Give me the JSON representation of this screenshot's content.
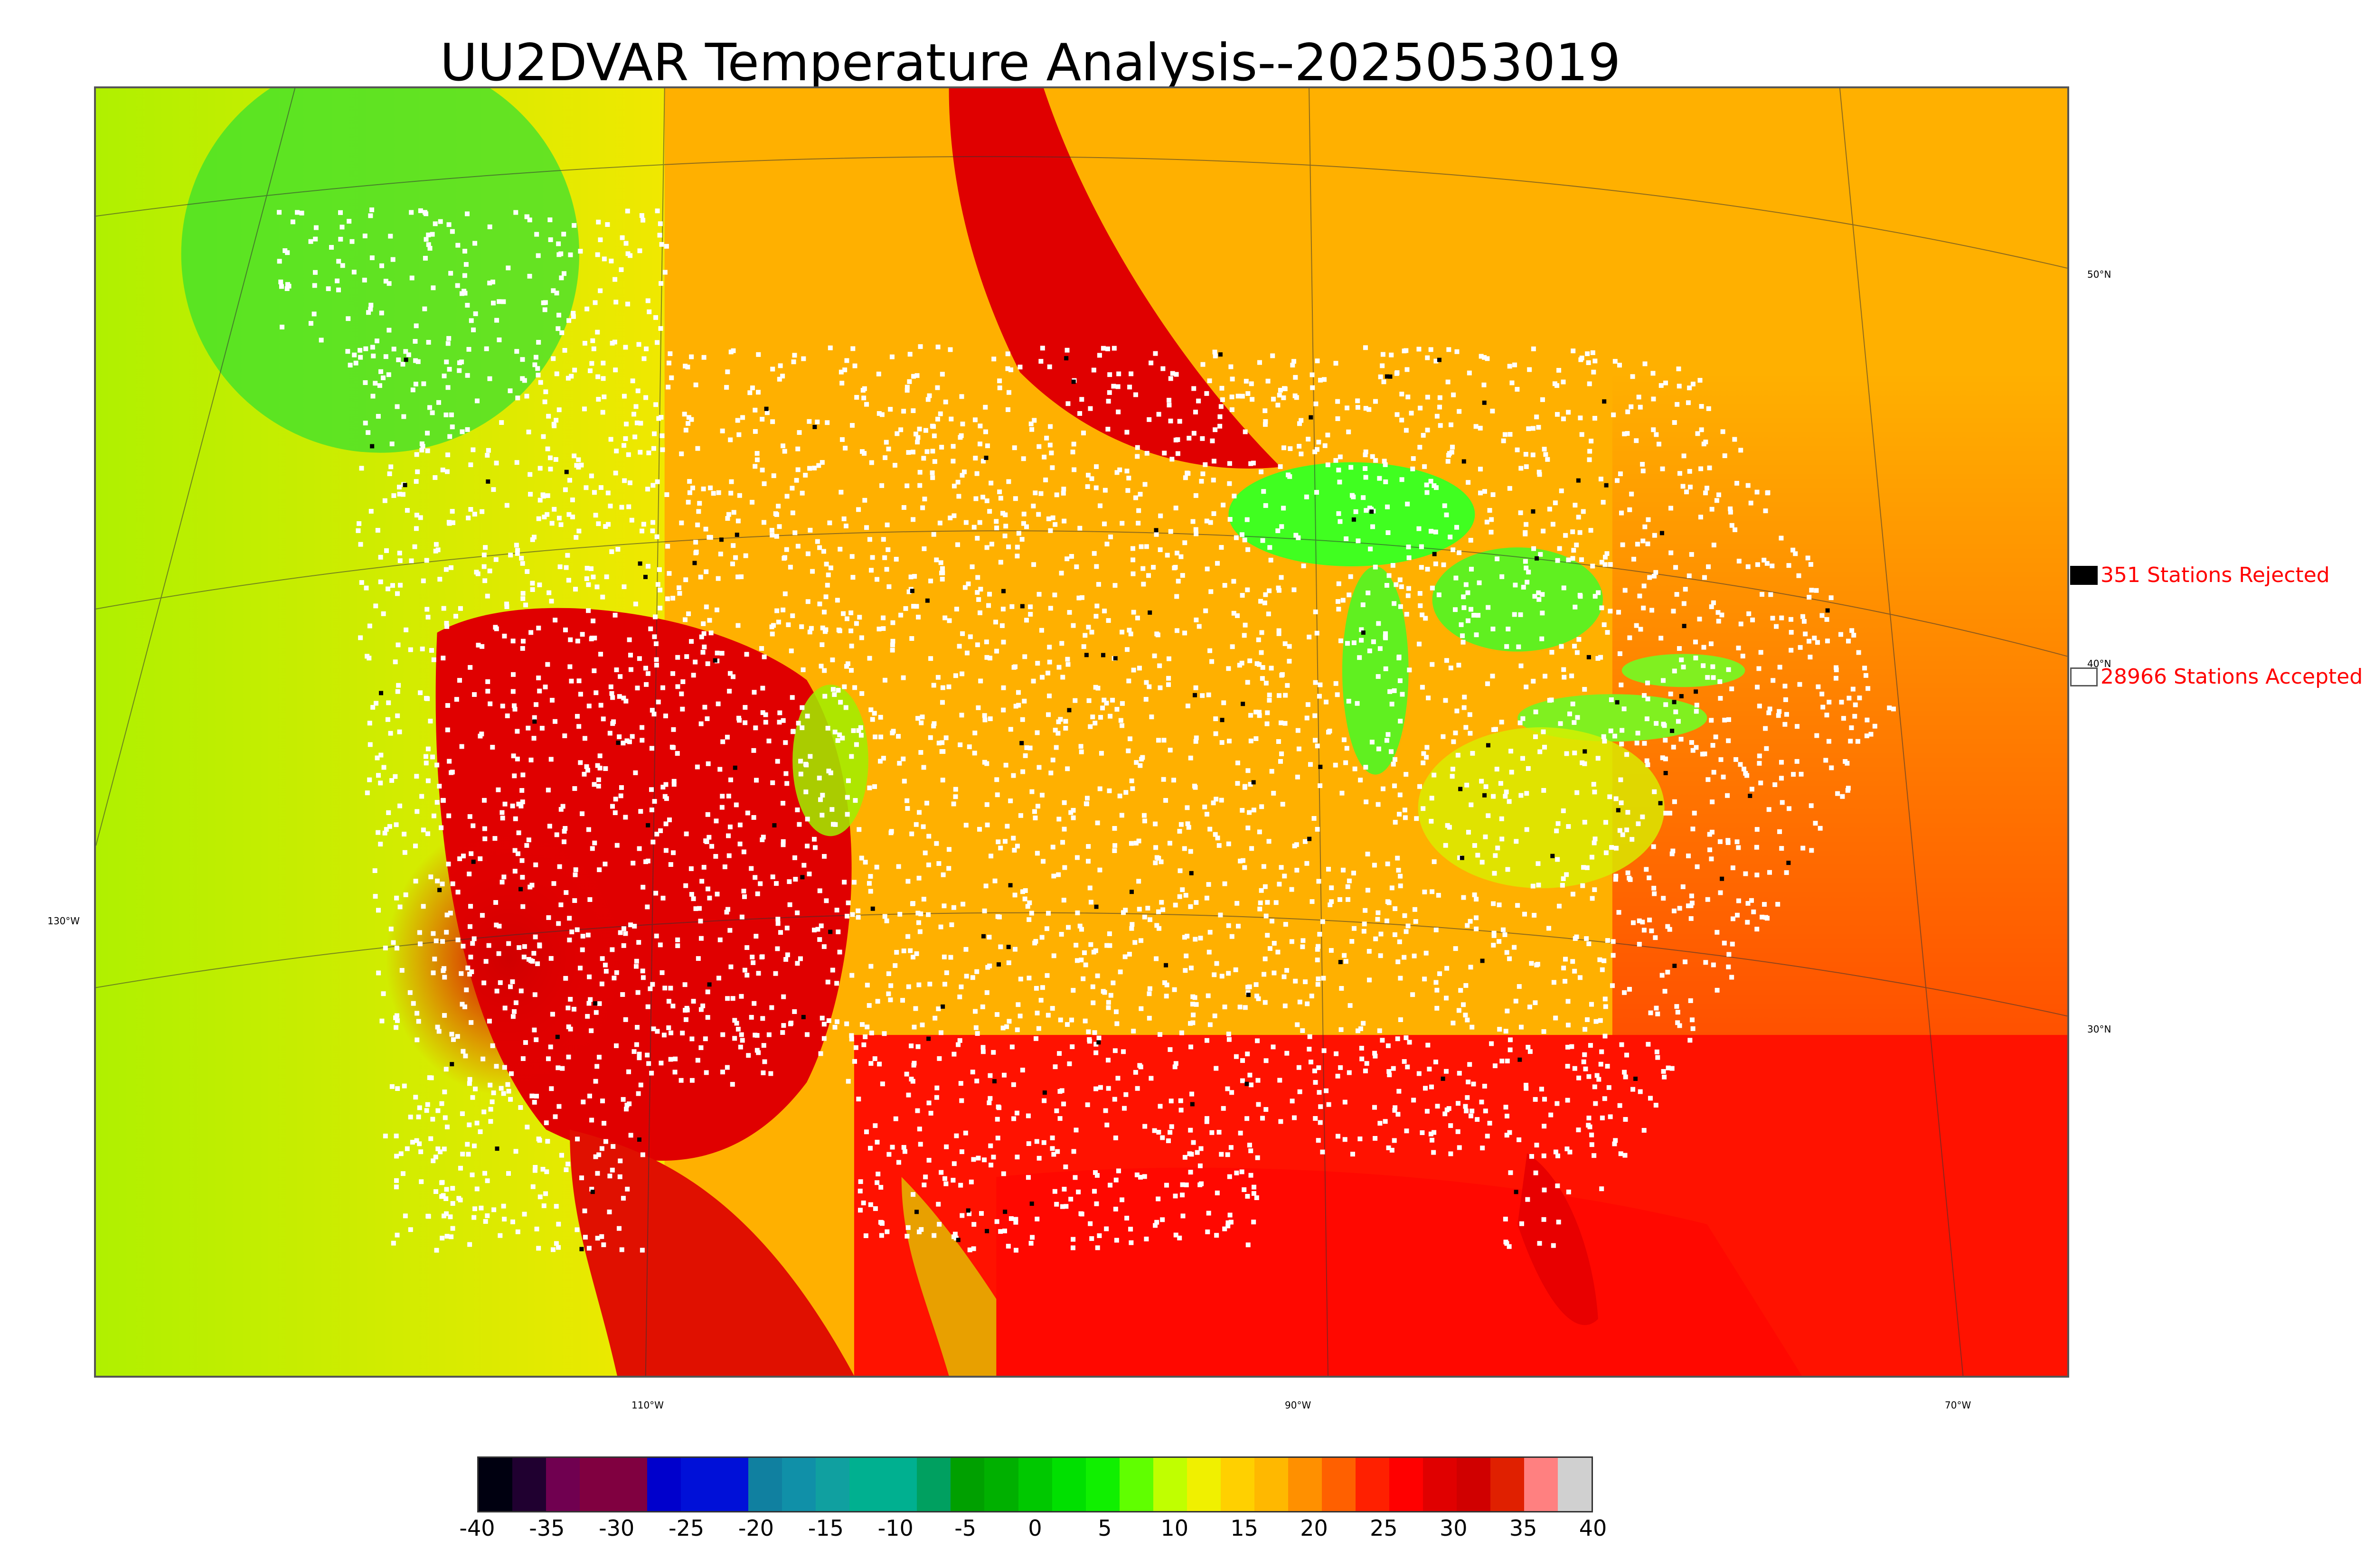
{
  "title": "UU2DVAR Temperature Analysis--2025053019",
  "map": {
    "region": "Contiguous United States and surrounding areas",
    "field": "temperature",
    "palette": {
      "ocean_west": "#e8e800",
      "ocean_east": "#ff3000",
      "gulf": "#ff1a00",
      "canada_north": "#00e000",
      "great_lakes": "#40ff20",
      "hot_interior": "#e00000",
      "plains": "#ff9a00",
      "station_accepted": "#ffffff",
      "station_rejected": "#000000"
    },
    "lat_labels": [
      "50°N",
      "40°N",
      "30°N"
    ],
    "lon_labels": [
      "130°W",
      "110°W",
      "90°W",
      "70°W"
    ]
  },
  "legend": {
    "rejected": {
      "count": 351,
      "label": "351 Stations Rejected",
      "color": "#000000"
    },
    "accepted": {
      "count": 28966,
      "label": "28966 Stations Accepted",
      "color": "#ffffff"
    }
  },
  "colorbar": {
    "ticks": [
      "-40",
      "-35",
      "-30",
      "-25",
      "-20",
      "-15",
      "-10",
      "-5",
      "0",
      "5",
      "10",
      "15",
      "20",
      "25",
      "30",
      "35",
      "40"
    ],
    "colors": [
      "#000010",
      "#200030",
      "#700050",
      "#800040",
      "#800040",
      "#0000cc",
      "#0010d8",
      "#0010d8",
      "#1080a0",
      "#1090a8",
      "#10a0a0",
      "#00b090",
      "#00b090",
      "#00a060",
      "#00a000",
      "#00b000",
      "#00c800",
      "#00e000",
      "#10f000",
      "#60ff00",
      "#c0ff00",
      "#f0f000",
      "#ffd000",
      "#ffb800",
      "#ff9000",
      "#ff6000",
      "#ff2000",
      "#ff0000",
      "#e00000",
      "#d00000",
      "#e02000",
      "#ff8080",
      "#d0d0d0"
    ]
  }
}
